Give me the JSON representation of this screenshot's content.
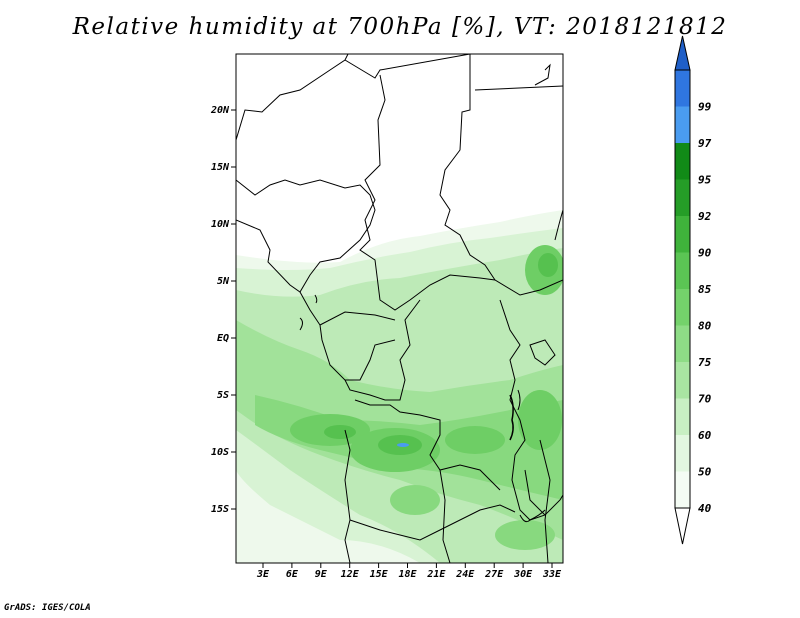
{
  "title": "Relative humidity at 700hPa [%], VT: 2018121812",
  "credit": "GrADS: IGES/COLA",
  "map": {
    "lat_ticks": [
      "20N",
      "15N",
      "10N",
      "5N",
      "EQ",
      "5S",
      "10S",
      "15S"
    ],
    "lon_ticks": [
      "3E",
      "6E",
      "9E",
      "12E",
      "15E",
      "18E",
      "21E",
      "24E",
      "27E",
      "30E",
      "33E"
    ]
  },
  "colorbar": {
    "bins": [
      {
        "label": "40",
        "color": "#f4fcf4"
      },
      {
        "label": "50",
        "color": "#e2f7e0"
      },
      {
        "label": "60",
        "color": "#c8efc3"
      },
      {
        "label": "70",
        "color": "#a9e5a2"
      },
      {
        "label": "75",
        "color": "#8edc86"
      },
      {
        "label": "80",
        "color": "#74d26b"
      },
      {
        "label": "85",
        "color": "#5bc554"
      },
      {
        "label": "90",
        "color": "#3fb33b"
      },
      {
        "label": "92",
        "color": "#259d27"
      },
      {
        "label": "95",
        "color": "#118a17"
      },
      {
        "label": "97",
        "color": "#4a9cf0"
      },
      {
        "label": "99",
        "color": "#2f76e0"
      }
    ],
    "top_color": "#1f5fc8"
  }
}
